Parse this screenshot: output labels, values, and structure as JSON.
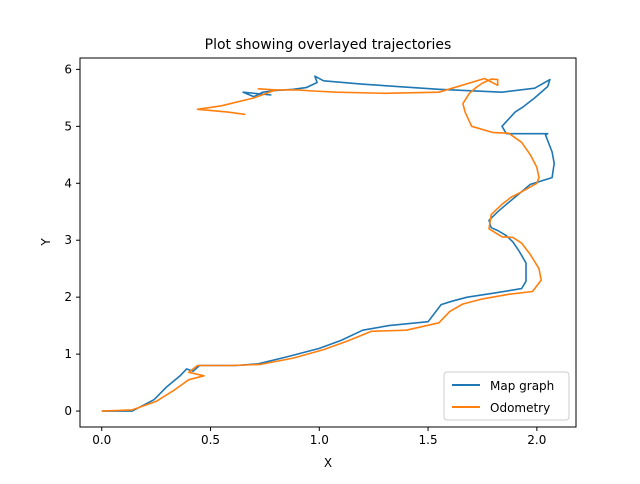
{
  "chart_data": {
    "type": "line",
    "title": "Plot showing overlayed trajectories",
    "xlabel": "X",
    "ylabel": "Y",
    "xlim": [
      -0.1,
      2.18
    ],
    "ylim": [
      -0.28,
      6.2
    ],
    "xticks": [
      0.0,
      0.5,
      1.0,
      1.5,
      2.0
    ],
    "xtick_labels": [
      "0.0",
      "0.5",
      "1.0",
      "1.5",
      "2.0"
    ],
    "yticks": [
      0,
      1,
      2,
      3,
      4,
      5,
      6
    ],
    "ytick_labels": [
      "0",
      "1",
      "2",
      "3",
      "4",
      "5",
      "6"
    ],
    "grid": false,
    "legend_position": "lower-right",
    "series": [
      {
        "name": "Map graph",
        "color": "#1f77b4",
        "x": [
          0.0,
          0.14,
          0.24,
          0.3,
          0.36,
          0.39,
          0.42,
          0.45,
          0.62,
          0.72,
          0.86,
          1.0,
          1.1,
          1.2,
          1.32,
          1.5,
          1.56,
          1.61,
          1.68,
          1.8,
          1.93,
          1.95,
          1.95,
          1.92,
          1.89,
          1.86,
          1.82,
          1.79,
          1.78,
          1.82,
          1.86,
          1.93,
          1.97,
          2.07,
          2.08,
          2.07,
          2.04,
          2.05,
          1.96,
          1.86,
          1.84,
          1.9,
          1.94,
          1.99,
          2.05,
          2.06,
          1.99,
          1.84,
          1.55,
          1.2,
          1.02,
          0.98,
          0.99,
          0.94,
          0.88,
          0.8,
          0.74,
          0.7,
          0.65,
          0.78
        ],
        "y": [
          0.0,
          0.0,
          0.2,
          0.43,
          0.62,
          0.74,
          0.7,
          0.8,
          0.8,
          0.83,
          0.96,
          1.1,
          1.24,
          1.42,
          1.5,
          1.57,
          1.87,
          1.93,
          2.0,
          2.07,
          2.15,
          2.28,
          2.6,
          2.8,
          2.97,
          3.08,
          3.17,
          3.22,
          3.35,
          3.5,
          3.63,
          3.85,
          3.98,
          4.1,
          4.35,
          4.55,
          4.85,
          4.87,
          4.87,
          4.87,
          5.0,
          5.25,
          5.35,
          5.5,
          5.7,
          5.82,
          5.67,
          5.6,
          5.65,
          5.74,
          5.8,
          5.88,
          5.77,
          5.68,
          5.65,
          5.63,
          5.6,
          5.52,
          5.6,
          5.55
        ]
      },
      {
        "name": "Odometry",
        "color": "#ff7f0e",
        "x": [
          0.0,
          0.14,
          0.25,
          0.33,
          0.4,
          0.47,
          0.4,
          0.44,
          0.6,
          0.73,
          0.88,
          1.02,
          1.13,
          1.24,
          1.4,
          1.55,
          1.6,
          1.66,
          1.75,
          1.87,
          1.98,
          2.02,
          2.01,
          1.97,
          1.93,
          1.89,
          1.84,
          1.78,
          1.79,
          1.84,
          1.88,
          1.93,
          2.0,
          2.01,
          2.0,
          1.97,
          1.93,
          1.87,
          1.8,
          1.7,
          1.67,
          1.66,
          1.69,
          1.72,
          1.75,
          1.79,
          1.82,
          1.82,
          1.76,
          1.55,
          1.3,
          1.08,
          0.97,
          0.9,
          0.8,
          0.72,
          0.8,
          0.7,
          0.55,
          0.44,
          0.58,
          0.66
        ],
        "y": [
          0.0,
          0.02,
          0.17,
          0.36,
          0.55,
          0.62,
          0.68,
          0.8,
          0.8,
          0.82,
          0.93,
          1.08,
          1.23,
          1.4,
          1.42,
          1.55,
          1.75,
          1.88,
          1.97,
          2.05,
          2.1,
          2.3,
          2.5,
          2.75,
          2.95,
          3.05,
          3.06,
          3.2,
          3.45,
          3.63,
          3.75,
          3.85,
          4.0,
          4.1,
          4.28,
          4.5,
          4.72,
          4.88,
          4.89,
          5.0,
          5.25,
          5.4,
          5.58,
          5.68,
          5.76,
          5.83,
          5.82,
          5.72,
          5.84,
          5.6,
          5.58,
          5.6,
          5.62,
          5.64,
          5.64,
          5.66,
          5.64,
          5.5,
          5.36,
          5.3,
          5.25,
          5.21
        ]
      }
    ]
  }
}
